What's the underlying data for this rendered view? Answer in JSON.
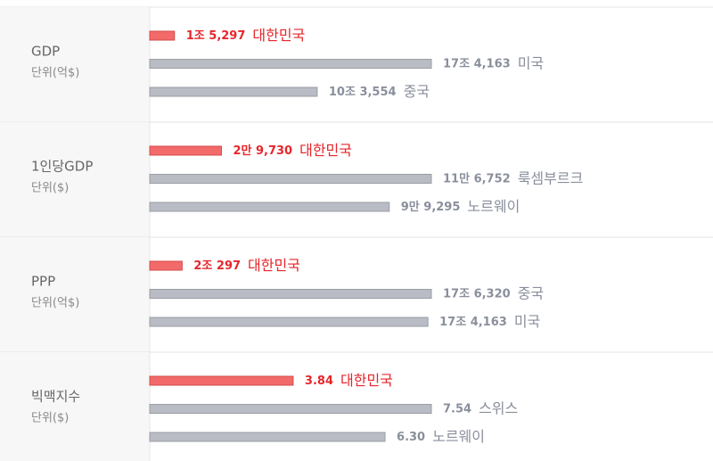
{
  "rows": [
    {
      "label": "GDP",
      "unit": "단위(억$)",
      "items": [
        {
          "value": 15297,
          "value_label": "1조 5,297",
          "country": "대한민국",
          "color": "#f26a6a"
        },
        {
          "value": 174163,
          "value_label": "17조 4,163",
          "country": "미국",
          "color": "#b9bcc4"
        },
        {
          "value": 103554,
          "value_label": "10조 3,554",
          "country": "중국",
          "color": "#b9bcc4"
        }
      ]
    },
    {
      "label": "1인당GDP",
      "unit": "단위($)",
      "items": [
        {
          "value": 29730,
          "value_label": "2만 9,730",
          "country": "대한민국",
          "color": "#f26a6a"
        },
        {
          "value": 116752,
          "value_label": "11만 6,752",
          "country": "룩셈부르크",
          "color": "#b9bcc4"
        },
        {
          "value": 99295,
          "value_label": "9만 9,295",
          "country": "노르웨이",
          "color": "#b9bcc4"
        }
      ]
    },
    {
      "label": "PPP",
      "unit": "단위(억$)",
      "items": [
        {
          "value": 20297,
          "value_label": "2조 297",
          "country": "대한민국",
          "color": "#f26a6a"
        },
        {
          "value": 176320,
          "value_label": "17조 6,320",
          "country": "중국",
          "color": "#b9bcc4"
        },
        {
          "value": 174163,
          "value_label": "17조 4,163",
          "country": "미국",
          "color": "#b9bcc4"
        }
      ]
    },
    {
      "label": "빅맥지수",
      "unit": "단위($)",
      "items": [
        {
          "value": 3.84,
          "country": "대한민국",
          "color": "#f26a6a"
        },
        {
          "value": 7.54,
          "country": "스위스",
          "color": "#b9bcc4"
        },
        {
          "value": 6.3,
          "value_label": "6.30",
          "country": "노르웨이",
          "color": "#b9bcc4"
        }
      ]
    }
  ]
}
